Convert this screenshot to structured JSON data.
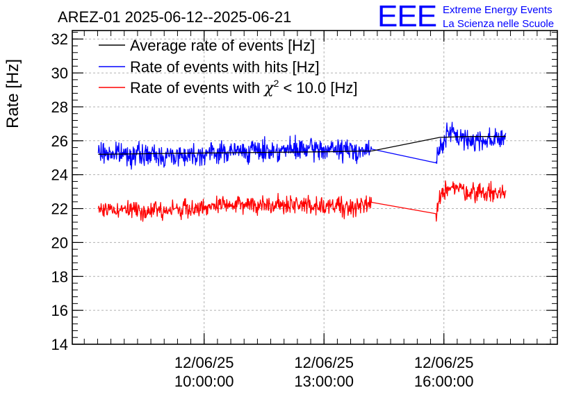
{
  "header": {
    "title": "AREZ-01 2025-06-12--2025-06-21",
    "logo_text": "EEE",
    "logo_line1": "Extreme Energy Events",
    "logo_line2": "La Scienza nelle Scuole"
  },
  "colors": {
    "black": "#000000",
    "blue": "#0000ff",
    "red": "#ff0000",
    "grid": "#b0b0b0"
  },
  "chart_data": {
    "type": "line",
    "title": "AREZ-01 2025-06-12--2025-06-21",
    "xlabel": "",
    "ylabel": "Rate [Hz]",
    "ylim": [
      14,
      32.5
    ],
    "xlim_hours": [
      6.7,
      18.84
    ],
    "yticks": [
      14,
      16,
      18,
      20,
      22,
      24,
      26,
      28,
      30,
      32
    ],
    "ytick_labels": [
      "14",
      "16",
      "18",
      "20",
      "22",
      "24",
      "26",
      "28",
      "30",
      "32"
    ],
    "xticks": [
      {
        "hour": 10,
        "date": "12/06/25",
        "time": "10:00:00"
      },
      {
        "hour": 13,
        "date": "12/06/25",
        "time": "13:00:00"
      },
      {
        "hour": 16,
        "date": "12/06/25",
        "time": "16:00:00"
      }
    ],
    "grid": true,
    "legend_position": "top-left",
    "series": [
      {
        "name": "Average rate of events [Hz]",
        "legend_label": "Average rate of events [Hz]",
        "color": "#000000",
        "noise": 0,
        "points": [
          [
            7.35,
            25.2
          ],
          [
            9.0,
            25.25
          ],
          [
            11.0,
            25.3
          ],
          [
            13.0,
            25.35
          ],
          [
            14.2,
            25.4
          ],
          [
            15.9,
            26.2
          ],
          [
            16.6,
            26.25
          ],
          [
            17.55,
            26.25
          ]
        ]
      },
      {
        "name": "Rate of events with hits [Hz]",
        "legend_label": "Rate of events with hits [Hz]",
        "color": "#0000ff",
        "noise": 0.48,
        "seed": 7,
        "points": [
          [
            7.35,
            25.3
          ],
          [
            9.0,
            25.1
          ],
          [
            11.0,
            25.4
          ],
          [
            13.0,
            25.5
          ],
          [
            14.2,
            25.4
          ],
          [
            15.8,
            24.7
          ],
          [
            15.9,
            25.6
          ],
          [
            16.1,
            26.5
          ],
          [
            16.6,
            26.0
          ],
          [
            17.55,
            26.2
          ]
        ]
      },
      {
        "name": "Rate of events with chi2 < 10.0 [Hz]",
        "legend_label": "Rate of events with χ² < 10.0 [Hz]",
        "legend_prefix": "Rate of events with ",
        "legend_chi": "χ",
        "legend_sup": "2",
        "legend_suffix": " < 10.0 [Hz]",
        "color": "#ff0000",
        "noise": 0.42,
        "seed": 13,
        "points": [
          [
            7.35,
            22.0
          ],
          [
            9.0,
            21.9
          ],
          [
            11.0,
            22.25
          ],
          [
            13.0,
            22.2
          ],
          [
            14.2,
            22.1
          ],
          [
            15.8,
            21.7
          ],
          [
            15.9,
            22.5
          ],
          [
            16.1,
            23.4
          ],
          [
            16.6,
            23.0
          ],
          [
            17.55,
            22.9
          ]
        ]
      }
    ]
  }
}
